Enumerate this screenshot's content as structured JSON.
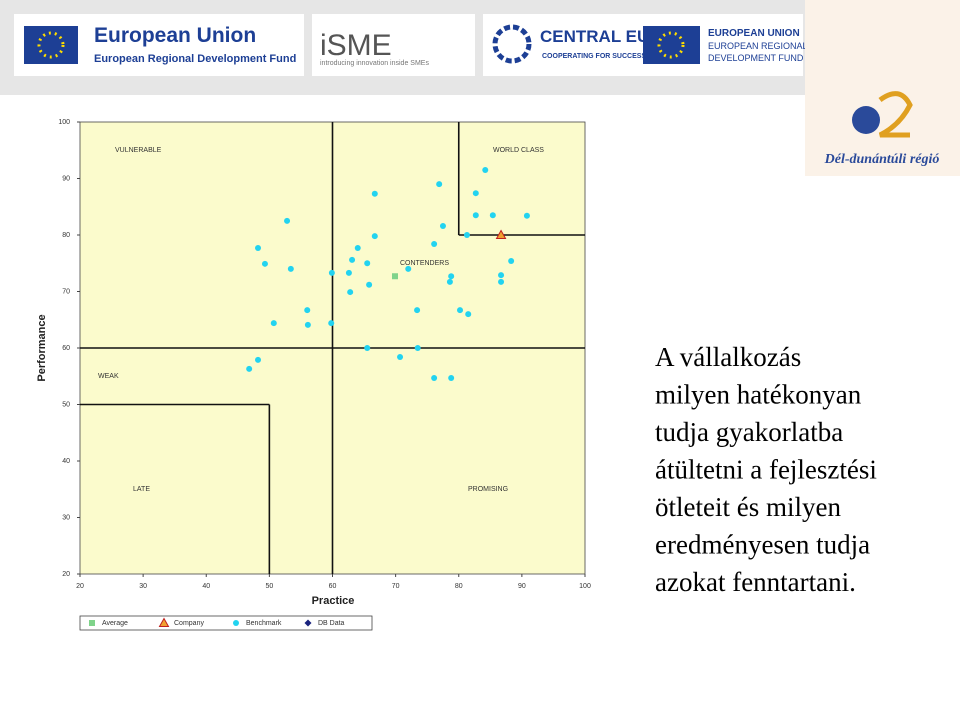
{
  "header": {
    "eu_title": "European Union",
    "eu_subtitle": "European Regional Development Fund",
    "isme_title": "iSME",
    "isme_subtitle": "introducing innovation inside SMEs",
    "ce_title": "CENTRAL EUROPE",
    "ce_subtitle": "COOPERATING FOR SUCCESS.",
    "eu2_line1": "EUROPEAN UNION",
    "eu2_line2": "EUROPEAN REGIONAL",
    "eu2_line3": "DEVELOPMENT FUND",
    "region": "Dél-dunántúli régió"
  },
  "body_text": [
    "A vállalkozás",
    "milyen hatékonyan",
    "tudja gyakorlatba",
    "átültetni a fejlesztési",
    "ötleteit és milyen",
    "eredményesen tudja",
    "azokat fenntartani."
  ],
  "chart_data": {
    "type": "scatter",
    "x_label": "Practice",
    "y_label": "Performance",
    "xlim": [
      20,
      100
    ],
    "ylim": [
      20,
      100
    ],
    "xticks": [
      20,
      30,
      40,
      50,
      60,
      70,
      80,
      90,
      100
    ],
    "yticks": [
      20,
      30,
      40,
      50,
      60,
      70,
      80,
      90,
      100
    ],
    "annotations": [
      "VULNERABLE",
      "WORLD CLASS",
      "CONTENDERS",
      "WEAK",
      "LATE",
      "PROMISING"
    ],
    "threshold_lines": [
      {
        "x": [
          60,
          60
        ],
        "y": [
          20,
          100
        ]
      },
      {
        "x": [
          20,
          100
        ],
        "y": [
          60,
          60
        ]
      },
      {
        "x": [
          80,
          80
        ],
        "y": [
          80,
          100
        ]
      },
      {
        "x": [
          80,
          100
        ],
        "y": [
          80,
          80
        ]
      },
      {
        "x": [
          20,
          50
        ],
        "y": [
          50,
          50
        ]
      },
      {
        "x": [
          50,
          50
        ],
        "y": [
          20,
          50
        ]
      }
    ],
    "series": [
      {
        "name": "Average",
        "color": "#7fd38a",
        "marker": "square",
        "x": [
          69.9
        ],
        "values": [
          72.7
        ]
      },
      {
        "name": "Company",
        "color": "#f0a030",
        "marker": "triangle",
        "x": [
          86.7
        ],
        "values": [
          80.0
        ]
      },
      {
        "name": "Benchmark",
        "color": "#22d3f0",
        "marker": "circle",
        "x": [
          84.2,
          76.9,
          66.7,
          52.8,
          82.7,
          82.7,
          85.4,
          90.8,
          77.5,
          66.7,
          81.3,
          48.2,
          64.0,
          76.1,
          49.3,
          53.4,
          63.1,
          65.5,
          72.0,
          62.6,
          59.9,
          78.8,
          86.7,
          88.3,
          78.6,
          86.7,
          65.8,
          62.8,
          56.0,
          73.4,
          80.2,
          81.5,
          50.7,
          56.1,
          59.8,
          65.5,
          73.5,
          70.7,
          48.2,
          46.8,
          76.1,
          78.8
        ],
        "values": [
          91.5,
          89.0,
          87.3,
          82.5,
          87.4,
          83.5,
          83.5,
          83.4,
          81.6,
          79.8,
          80.0,
          77.7,
          77.7,
          78.4,
          74.9,
          74.0,
          75.6,
          75.0,
          74.0,
          73.3,
          73.3,
          72.7,
          72.9,
          75.4,
          71.7,
          71.7,
          71.2,
          69.9,
          66.7,
          66.7,
          66.7,
          66.0,
          64.4,
          64.1,
          64.4,
          60.0,
          60.0,
          58.4,
          57.9,
          56.3,
          54.7,
          54.7
        ]
      },
      {
        "name": "DB Data",
        "color": "#1a237e",
        "marker": "diamond",
        "x": [],
        "values": []
      }
    ]
  }
}
